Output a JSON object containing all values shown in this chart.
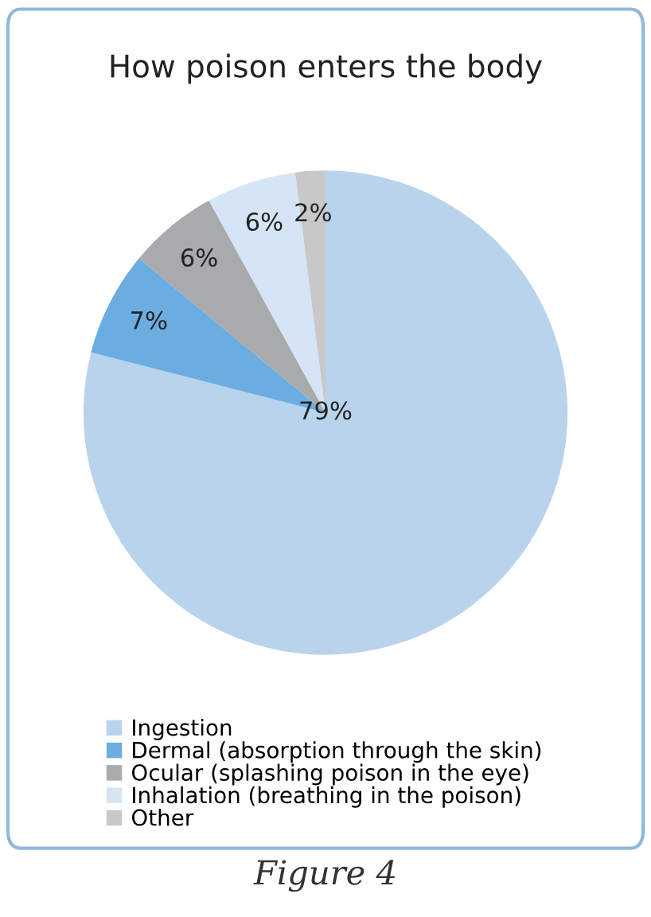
{
  "chart_data": {
    "type": "pie",
    "title": "How poison enters the body",
    "categories": [
      "Ingestion",
      "Dermal (absorption through the skin)",
      "Ocular (splashing poison in the eye)",
      "Inhalation (breathing in the poison)",
      "Other"
    ],
    "values": [
      79,
      7,
      6,
      6,
      2
    ],
    "colors": [
      "#b9d3ec",
      "#6badE0",
      "#a8aaac",
      "#d5e5f5",
      "#c8c8c8"
    ],
    "value_labels": [
      "79%",
      "7%",
      "6%",
      "6%",
      "2%"
    ],
    "legend": "bottom",
    "annotations": [
      "Figure 4"
    ]
  }
}
